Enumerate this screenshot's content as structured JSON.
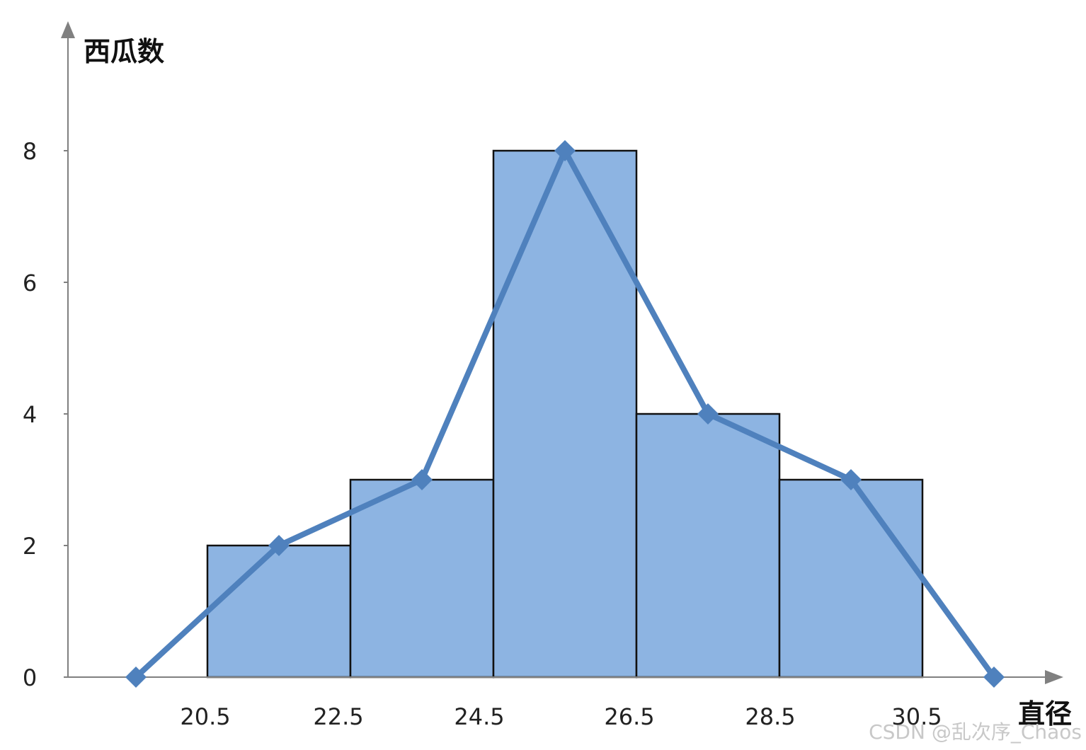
{
  "chart_data": {
    "type": "bar",
    "title": "",
    "xlabel": "直径",
    "ylabel": "西瓜数",
    "bins": [
      {
        "from": 20.5,
        "to": 22.5,
        "value": 2
      },
      {
        "from": 22.5,
        "to": 24.5,
        "value": 3
      },
      {
        "from": 24.5,
        "to": 26.5,
        "value": 8
      },
      {
        "from": 26.5,
        "to": 28.5,
        "value": 4
      },
      {
        "from": 28.5,
        "to": 30.5,
        "value": 3
      }
    ],
    "x_ticks": [
      "20.5",
      "22.5",
      "24.5",
      "26.5",
      "28.5",
      "30.5"
    ],
    "y_ticks": [
      "0",
      "2",
      "4",
      "6",
      "8"
    ],
    "ylim": [
      0,
      9.5
    ],
    "polygon": {
      "x": [
        19.5,
        21.5,
        23.5,
        25.5,
        27.5,
        29.5,
        31.5
      ],
      "y": [
        0,
        2,
        3,
        8,
        4,
        3,
        0
      ]
    },
    "grid": false,
    "colors": {
      "bar_fill": "#8db4e2",
      "bar_stroke": "#111111",
      "line": "#4f81bd",
      "axis": "#808080"
    }
  },
  "watermark": "CSDN @乱次序_Chaos"
}
